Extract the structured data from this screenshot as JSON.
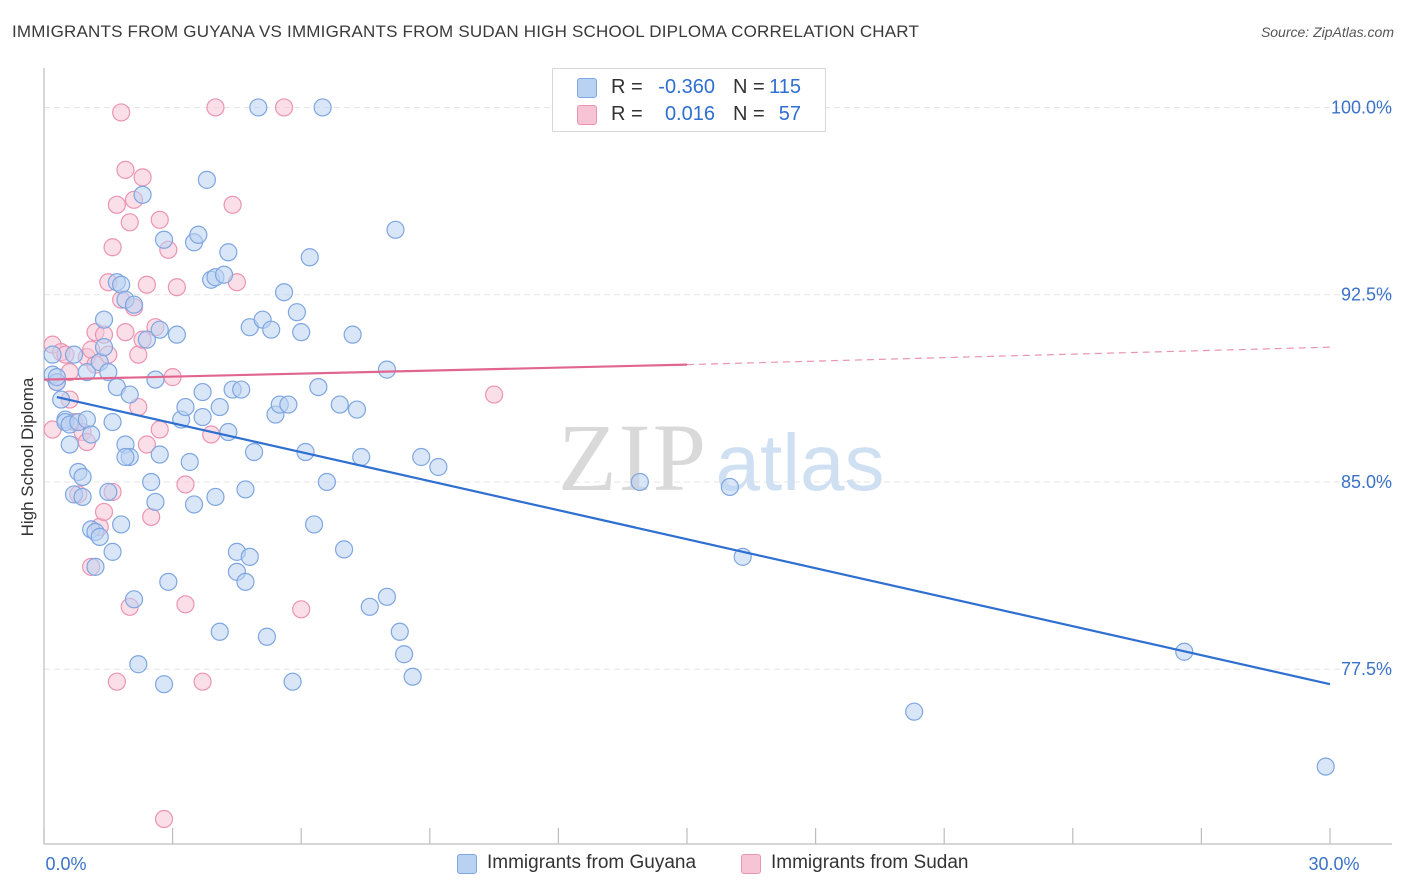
{
  "title": "IMMIGRANTS FROM GUYANA VS IMMIGRANTS FROM SUDAN HIGH SCHOOL DIPLOMA CORRELATION CHART",
  "source": "Source: ZipAtlas.com",
  "watermark": {
    "zip": "ZIP",
    "atlas": "atlas"
  },
  "legend": {
    "r_label": "R =",
    "n_label": "N =",
    "series": [
      {
        "name": "Immigrants from Guyana",
        "r": "-0.360",
        "n": "115"
      },
      {
        "name": "Immigrants from Sudan",
        "r": "0.016",
        "n": "57"
      }
    ]
  },
  "colors": {
    "guyana_fill": "#b9d1f3",
    "guyana_stroke": "#7ea6e0",
    "guyana_line": "#2f6fd0",
    "sudan_fill": "#f7c4d5",
    "sudan_stroke": "#eb94b2",
    "sudan_line": "#e06690",
    "axis_text": "#3a72c8",
    "grid": "#e6e6e6"
  },
  "chart_data": {
    "type": "scatter",
    "title": "IMMIGRANTS FROM GUYANA VS IMMIGRANTS FROM SUDAN HIGH SCHOOL DIPLOMA CORRELATION CHART",
    "xlabel": "",
    "ylabel": "High School Diploma",
    "xlim": [
      0,
      30
    ],
    "ylim": [
      70.5,
      101.5
    ],
    "x_ticks": [
      0,
      3,
      6,
      9,
      12,
      15,
      18,
      21,
      24,
      27,
      30
    ],
    "x_tick_labels": [
      {
        "value": 0,
        "label": "0.0%"
      },
      {
        "value": 30,
        "label": "30.0%"
      }
    ],
    "y_ticks": [
      {
        "value": 77.5,
        "label": "77.5%"
      },
      {
        "value": 85.0,
        "label": "85.0%"
      },
      {
        "value": 92.5,
        "label": "92.5%"
      },
      {
        "value": 100.0,
        "label": "100.0%"
      }
    ],
    "grid": true,
    "series": [
      {
        "name": "Immigrants from Guyana",
        "points": [
          [
            0.2,
            90.1
          ],
          [
            0.2,
            89.3
          ],
          [
            0.3,
            89.0
          ],
          [
            0.3,
            89.2
          ],
          [
            0.4,
            88.3
          ],
          [
            0.5,
            87.5
          ],
          [
            0.5,
            87.4
          ],
          [
            0.6,
            86.5
          ],
          [
            0.6,
            87.3
          ],
          [
            0.7,
            90.1
          ],
          [
            0.7,
            84.5
          ],
          [
            0.8,
            87.4
          ],
          [
            0.8,
            85.4
          ],
          [
            0.9,
            85.2
          ],
          [
            0.9,
            84.4
          ],
          [
            1.0,
            89.4
          ],
          [
            1.0,
            87.5
          ],
          [
            1.1,
            83.1
          ],
          [
            1.1,
            86.9
          ],
          [
            1.2,
            83.0
          ],
          [
            1.2,
            81.6
          ],
          [
            1.3,
            89.8
          ],
          [
            1.3,
            82.8
          ],
          [
            1.4,
            90.4
          ],
          [
            1.4,
            91.5
          ],
          [
            1.5,
            89.4
          ],
          [
            1.5,
            84.6
          ],
          [
            1.6,
            87.4
          ],
          [
            1.6,
            82.2
          ],
          [
            1.7,
            88.8
          ],
          [
            1.7,
            93.0
          ],
          [
            1.8,
            92.9
          ],
          [
            1.8,
            83.3
          ],
          [
            1.9,
            86.5
          ],
          [
            1.9,
            92.3
          ],
          [
            2.0,
            88.5
          ],
          [
            2.0,
            86.0
          ],
          [
            2.1,
            92.1
          ],
          [
            2.1,
            80.3
          ],
          [
            2.2,
            77.7
          ],
          [
            2.3,
            96.5
          ],
          [
            2.4,
            90.7
          ],
          [
            2.5,
            85.0
          ],
          [
            2.6,
            89.1
          ],
          [
            2.6,
            84.2
          ],
          [
            2.7,
            91.1
          ],
          [
            2.7,
            86.1
          ],
          [
            2.8,
            94.7
          ],
          [
            2.8,
            76.9
          ],
          [
            2.9,
            81.0
          ],
          [
            3.1,
            90.9
          ],
          [
            3.2,
            87.5
          ],
          [
            3.3,
            88.0
          ],
          [
            3.4,
            85.8
          ],
          [
            3.5,
            84.1
          ],
          [
            3.5,
            94.6
          ],
          [
            3.6,
            94.9
          ],
          [
            3.7,
            88.6
          ],
          [
            3.7,
            87.6
          ],
          [
            3.8,
            97.1
          ],
          [
            3.9,
            93.1
          ],
          [
            4.0,
            84.4
          ],
          [
            4.0,
            93.2
          ],
          [
            4.1,
            88.0
          ],
          [
            4.1,
            79.0
          ],
          [
            4.2,
            93.3
          ],
          [
            4.3,
            94.2
          ],
          [
            4.3,
            87.0
          ],
          [
            4.4,
            88.7
          ],
          [
            4.5,
            81.4
          ],
          [
            4.5,
            82.2
          ],
          [
            4.6,
            88.7
          ],
          [
            4.7,
            84.7
          ],
          [
            4.7,
            81.0
          ],
          [
            4.8,
            91.2
          ],
          [
            4.8,
            82.0
          ],
          [
            4.9,
            86.2
          ],
          [
            5.0,
            100.0
          ],
          [
            5.1,
            91.5
          ],
          [
            5.2,
            78.8
          ],
          [
            5.3,
            91.1
          ],
          [
            5.4,
            87.7
          ],
          [
            5.5,
            88.1
          ],
          [
            5.6,
            92.6
          ],
          [
            5.7,
            88.1
          ],
          [
            5.8,
            77.0
          ],
          [
            5.9,
            91.8
          ],
          [
            6.0,
            91.0
          ],
          [
            6.1,
            86.2
          ],
          [
            6.2,
            94.0
          ],
          [
            6.3,
            83.3
          ],
          [
            6.4,
            88.8
          ],
          [
            6.5,
            100.0
          ],
          [
            6.6,
            85.0
          ],
          [
            6.9,
            88.1
          ],
          [
            7.0,
            82.3
          ],
          [
            7.2,
            90.9
          ],
          [
            7.3,
            87.9
          ],
          [
            7.4,
            86.0
          ],
          [
            7.6,
            80.0
          ],
          [
            8.0,
            89.5
          ],
          [
            8.0,
            80.4
          ],
          [
            8.2,
            95.1
          ],
          [
            8.3,
            79.0
          ],
          [
            8.4,
            78.1
          ],
          [
            8.6,
            77.2
          ],
          [
            8.8,
            86.0
          ],
          [
            9.2,
            85.6
          ],
          [
            13.9,
            85.0
          ],
          [
            16.0,
            84.8
          ],
          [
            16.3,
            82.0
          ],
          [
            20.3,
            75.8
          ],
          [
            26.6,
            78.2
          ],
          [
            29.9,
            73.6
          ],
          [
            1.9,
            86.0
          ]
        ],
        "trend": {
          "x": [
            0.3,
            30.0
          ],
          "y": [
            88.4,
            76.9
          ],
          "style": "solid"
        }
      },
      {
        "name": "Immigrants from Sudan",
        "points": [
          [
            0.2,
            87.1
          ],
          [
            0.2,
            90.5
          ],
          [
            0.3,
            89.0
          ],
          [
            0.4,
            90.2
          ],
          [
            0.5,
            90.1
          ],
          [
            0.6,
            88.3
          ],
          [
            0.6,
            89.4
          ],
          [
            0.7,
            87.4
          ],
          [
            0.8,
            84.5
          ],
          [
            0.9,
            87.0
          ],
          [
            1.0,
            86.6
          ],
          [
            1.0,
            90.0
          ],
          [
            1.1,
            90.3
          ],
          [
            1.1,
            81.6
          ],
          [
            1.2,
            91.0
          ],
          [
            1.2,
            89.7
          ],
          [
            1.3,
            83.2
          ],
          [
            1.4,
            83.8
          ],
          [
            1.4,
            90.9
          ],
          [
            1.5,
            93.0
          ],
          [
            1.5,
            90.1
          ],
          [
            1.6,
            94.4
          ],
          [
            1.6,
            84.6
          ],
          [
            1.7,
            96.1
          ],
          [
            1.7,
            77.0
          ],
          [
            1.8,
            99.8
          ],
          [
            1.8,
            92.3
          ],
          [
            1.9,
            97.5
          ],
          [
            1.9,
            91.0
          ],
          [
            2.0,
            95.4
          ],
          [
            2.0,
            80.0
          ],
          [
            2.1,
            96.3
          ],
          [
            2.1,
            92.0
          ],
          [
            2.2,
            88.0
          ],
          [
            2.2,
            90.1
          ],
          [
            2.3,
            97.2
          ],
          [
            2.3,
            90.7
          ],
          [
            2.4,
            92.9
          ],
          [
            2.4,
            86.5
          ],
          [
            2.5,
            83.6
          ],
          [
            2.6,
            91.2
          ],
          [
            2.7,
            87.1
          ],
          [
            2.7,
            95.5
          ],
          [
            2.8,
            71.5
          ],
          [
            2.9,
            94.3
          ],
          [
            3.0,
            89.2
          ],
          [
            3.1,
            92.8
          ],
          [
            3.3,
            84.9
          ],
          [
            3.3,
            80.1
          ],
          [
            3.7,
            77.0
          ],
          [
            3.9,
            86.9
          ],
          [
            4.0,
            100.0
          ],
          [
            4.4,
            96.1
          ],
          [
            4.5,
            93.0
          ],
          [
            5.6,
            100.0
          ],
          [
            6.0,
            79.9
          ],
          [
            10.5,
            88.5
          ]
        ],
        "trend": {
          "x": [
            0.0,
            15.0
          ],
          "y": [
            89.1,
            89.7
          ],
          "style": "solid",
          "extension": {
            "x": [
              15.0,
              30.0
            ],
            "y": [
              89.7,
              90.4
            ],
            "style": "dashed"
          }
        }
      }
    ]
  }
}
